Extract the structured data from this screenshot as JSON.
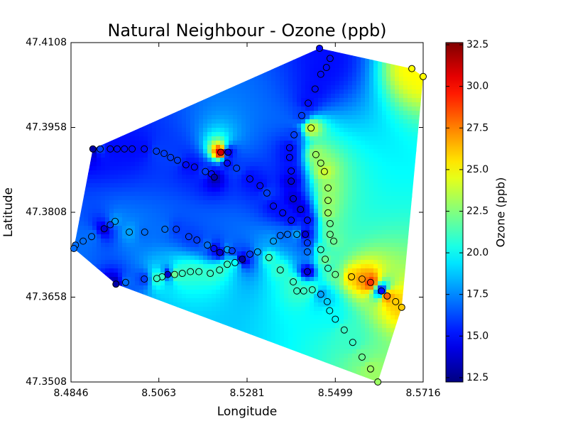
{
  "chart_data": {
    "type": "scatter",
    "title": "Natural Neighbour - Ozone (ppb)",
    "x_label": "Longitude",
    "y_label": "Latitude",
    "colorbar_label": "Ozone (ppb)",
    "colormap": "jet",
    "x": [
      8.49,
      8.4918,
      8.4943,
      8.496,
      8.4978,
      8.4997,
      8.5027,
      8.5057,
      8.5076,
      8.5092,
      8.5109,
      8.513,
      8.5151,
      8.5178,
      8.5193,
      8.52,
      8.5216,
      8.5234,
      8.5232,
      8.5255,
      8.5288,
      8.5313,
      8.533,
      8.5346,
      8.5369,
      8.539,
      8.5404,
      8.5425,
      8.543,
      8.5413,
      8.5395,
      8.539,
      8.539,
      8.5386,
      8.5386,
      8.5397,
      8.5416,
      8.5432,
      8.5449,
      8.5463,
      8.5477,
      8.5486,
      8.546,
      8.5439,
      8.5451,
      8.5463,
      8.5472,
      8.5481,
      8.5481,
      8.5481,
      8.5486,
      8.5486,
      8.5495,
      8.5463,
      8.5474,
      8.5481,
      8.5499,
      8.5539,
      8.5565,
      8.5586,
      8.5613,
      8.5627,
      8.5648,
      8.5663,
      8.5688,
      8.5716,
      8.543,
      8.543,
      8.543,
      8.5463,
      8.5479,
      8.5485,
      8.5499,
      8.5521,
      8.5542,
      8.5565,
      8.5586,
      8.5604,
      8.5395,
      8.5404,
      8.5421,
      8.5442,
      8.5363,
      8.5335,
      8.5346,
      8.5363,
      8.5381,
      8.5307,
      8.5288,
      8.5269,
      8.5251,
      8.5232,
      8.5213,
      8.519,
      8.5162,
      8.5141,
      8.5121,
      8.5102,
      8.5085,
      8.5071,
      8.5058,
      8.5027,
      8.4981,
      8.4957,
      8.5199,
      8.5214,
      8.5232,
      8.5244,
      8.5183,
      8.5157,
      8.5137,
      8.5106,
      8.5078,
      8.5028,
      8.499,
      8.4955,
      8.4943,
      8.4928,
      8.4897,
      8.4876,
      8.4857,
      8.4853
    ],
    "y": [
      47.392,
      47.392,
      47.392,
      47.392,
      47.392,
      47.392,
      47.392,
      47.3916,
      47.3912,
      47.3905,
      47.39,
      47.3892,
      47.3888,
      47.388,
      47.3876,
      47.387,
      47.3914,
      47.3914,
      47.3895,
      47.3886,
      47.3867,
      47.3855,
      47.3842,
      47.3819,
      47.3807,
      47.3794,
      47.3769,
      47.3769,
      47.3794,
      47.3813,
      47.3832,
      47.3863,
      47.3881,
      47.3905,
      47.3922,
      47.3945,
      47.3979,
      47.4001,
      47.4026,
      47.4052,
      47.4064,
      47.408,
      47.4098,
      47.3957,
      47.391,
      47.3895,
      47.388,
      47.3851,
      47.3829,
      47.3807,
      47.3788,
      47.3769,
      47.3757,
      47.3742,
      47.3725,
      47.3709,
      47.3698,
      47.3694,
      47.369,
      47.3684,
      47.3669,
      47.366,
      47.365,
      47.364,
      47.4062,
      47.4048,
      47.3754,
      47.3738,
      47.3703,
      47.3663,
      47.365,
      47.3634,
      47.3619,
      47.36,
      47.3578,
      47.3552,
      47.3531,
      47.3508,
      47.3685,
      47.3669,
      47.3669,
      47.3671,
      47.3706,
      47.3728,
      47.3757,
      47.3767,
      47.3769,
      47.3738,
      47.3734,
      47.3725,
      47.3719,
      47.3716,
      47.3706,
      47.37,
      47.3703,
      47.3703,
      47.37,
      47.3698,
      47.3698,
      47.3694,
      47.3691,
      47.369,
      47.3684,
      47.3681,
      47.3744,
      47.3737,
      47.3742,
      47.374,
      47.375,
      47.3759,
      47.3765,
      47.3778,
      47.3778,
      47.3773,
      47.3773,
      47.3792,
      47.3786,
      47.3779,
      47.3765,
      47.3757,
      47.375,
      47.3744
    ],
    "values": [
      13,
      16,
      15,
      15,
      15,
      15,
      15,
      16,
      16,
      16,
      16,
      15,
      15,
      16,
      15,
      13,
      31,
      14,
      15,
      16,
      15,
      15,
      16,
      15,
      15,
      15,
      18,
      14,
      15,
      14,
      14,
      14,
      15,
      15,
      15,
      16,
      16,
      15,
      15,
      15,
      15,
      15,
      15,
      24,
      23,
      23,
      24,
      23,
      23,
      23,
      22,
      22,
      22,
      21,
      22,
      21,
      22,
      26,
      27,
      29,
      15,
      28,
      26,
      26,
      25,
      25,
      16,
      17,
      14,
      18,
      19,
      20,
      20,
      21,
      21,
      22,
      23,
      23,
      21,
      21,
      21,
      21,
      21,
      21,
      18,
      17,
      17,
      18,
      16,
      13,
      20,
      21,
      21,
      21,
      21,
      21,
      21,
      22,
      14,
      21,
      21,
      16,
      17,
      13,
      15,
      14,
      18,
      16,
      17,
      16,
      16,
      16,
      17,
      17,
      18,
      18,
      16,
      14,
      17,
      17,
      17,
      17
    ],
    "xlim": [
      8.4846,
      8.5716
    ],
    "ylim": [
      47.3508,
      47.4108
    ],
    "xticks": [
      8.4846,
      8.5063,
      8.5281,
      8.5499,
      8.5716
    ],
    "yticks": [
      47.3508,
      47.3658,
      47.3808,
      47.3958,
      47.4108
    ],
    "clim": [
      12.24,
      32.63
    ],
    "cticks": [
      12.5,
      {
        "value": 15,
        "label": "15.0"
      },
      17.5,
      {
        "value": 20,
        "label": "20.0"
      },
      22.5,
      {
        "value": 25,
        "label": "25.0"
      },
      27.5,
      {
        "value": 30,
        "label": "30.0"
      },
      32.5
    ]
  }
}
